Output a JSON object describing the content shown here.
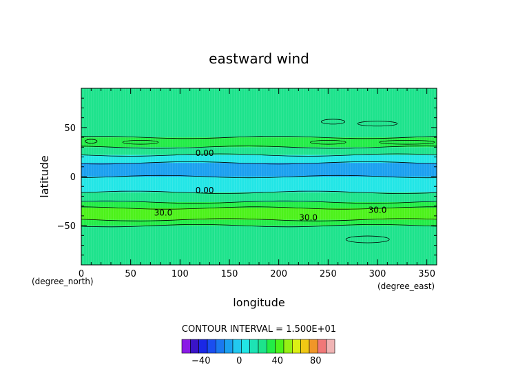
{
  "chart_data": {
    "type": "heatmap",
    "title": "eastward wind",
    "xlabel": "longitude",
    "ylabel": "latitude",
    "x_unit": "(degree_east)",
    "y_unit": "(degree_north)",
    "xlim": [
      0,
      360
    ],
    "ylim": [
      -90,
      90
    ],
    "x_ticks": [
      "0",
      "50",
      "100",
      "150",
      "200",
      "250",
      "300",
      "350"
    ],
    "y_ticks": [
      "50",
      "0",
      "−50"
    ],
    "contour_interval_text": "CONTOUR INTERVAL = 1.500E+01",
    "contour_interval": 15,
    "contour_labels": [
      {
        "text": "0.00",
        "x": 125,
        "y": 24
      },
      {
        "text": "0.00",
        "x": 125,
        "y": -14
      },
      {
        "text": "30.0",
        "x": 83,
        "y": -37
      },
      {
        "text": "30.0",
        "x": 230,
        "y": -42
      },
      {
        "text": "30.0",
        "x": 300,
        "y": -34
      }
    ],
    "zonal_bands": [
      {
        "from": 90,
        "to": 40,
        "color": "#1de38c"
      },
      {
        "from": 40,
        "to": 30,
        "color": "#22ec46"
      },
      {
        "from": 30,
        "to": 22,
        "color": "#1de38c"
      },
      {
        "from": 22,
        "to": 14,
        "color": "#22e6e6"
      },
      {
        "from": 14,
        "to": 0,
        "color": "#1aa0f0"
      },
      {
        "from": 0,
        "to": -16,
        "color": "#22e6e6"
      },
      {
        "from": -16,
        "to": -26,
        "color": "#1de38c"
      },
      {
        "from": -26,
        "to": -32,
        "color": "#22ec46"
      },
      {
        "from": -32,
        "to": -44,
        "color": "#4cf21a"
      },
      {
        "from": -44,
        "to": -50,
        "color": "#22ec46"
      },
      {
        "from": -50,
        "to": -90,
        "color": "#1de38c"
      }
    ],
    "colorbar": {
      "tick_labels": [
        "−40",
        "0",
        "40",
        "80"
      ],
      "tick_values": [
        -40,
        0,
        40,
        80
      ],
      "min": -60,
      "max": 100,
      "colors": [
        "#8a1ae6",
        "#3a14c8",
        "#1a28e6",
        "#1a4ef0",
        "#1a78f0",
        "#1aa0f0",
        "#22c8f0",
        "#22e6e6",
        "#1de3b4",
        "#1de38c",
        "#22ec46",
        "#4cf21a",
        "#96f014",
        "#dcf014",
        "#f0c814",
        "#f09628",
        "#f07878",
        "#f0b4b4"
      ]
    }
  }
}
